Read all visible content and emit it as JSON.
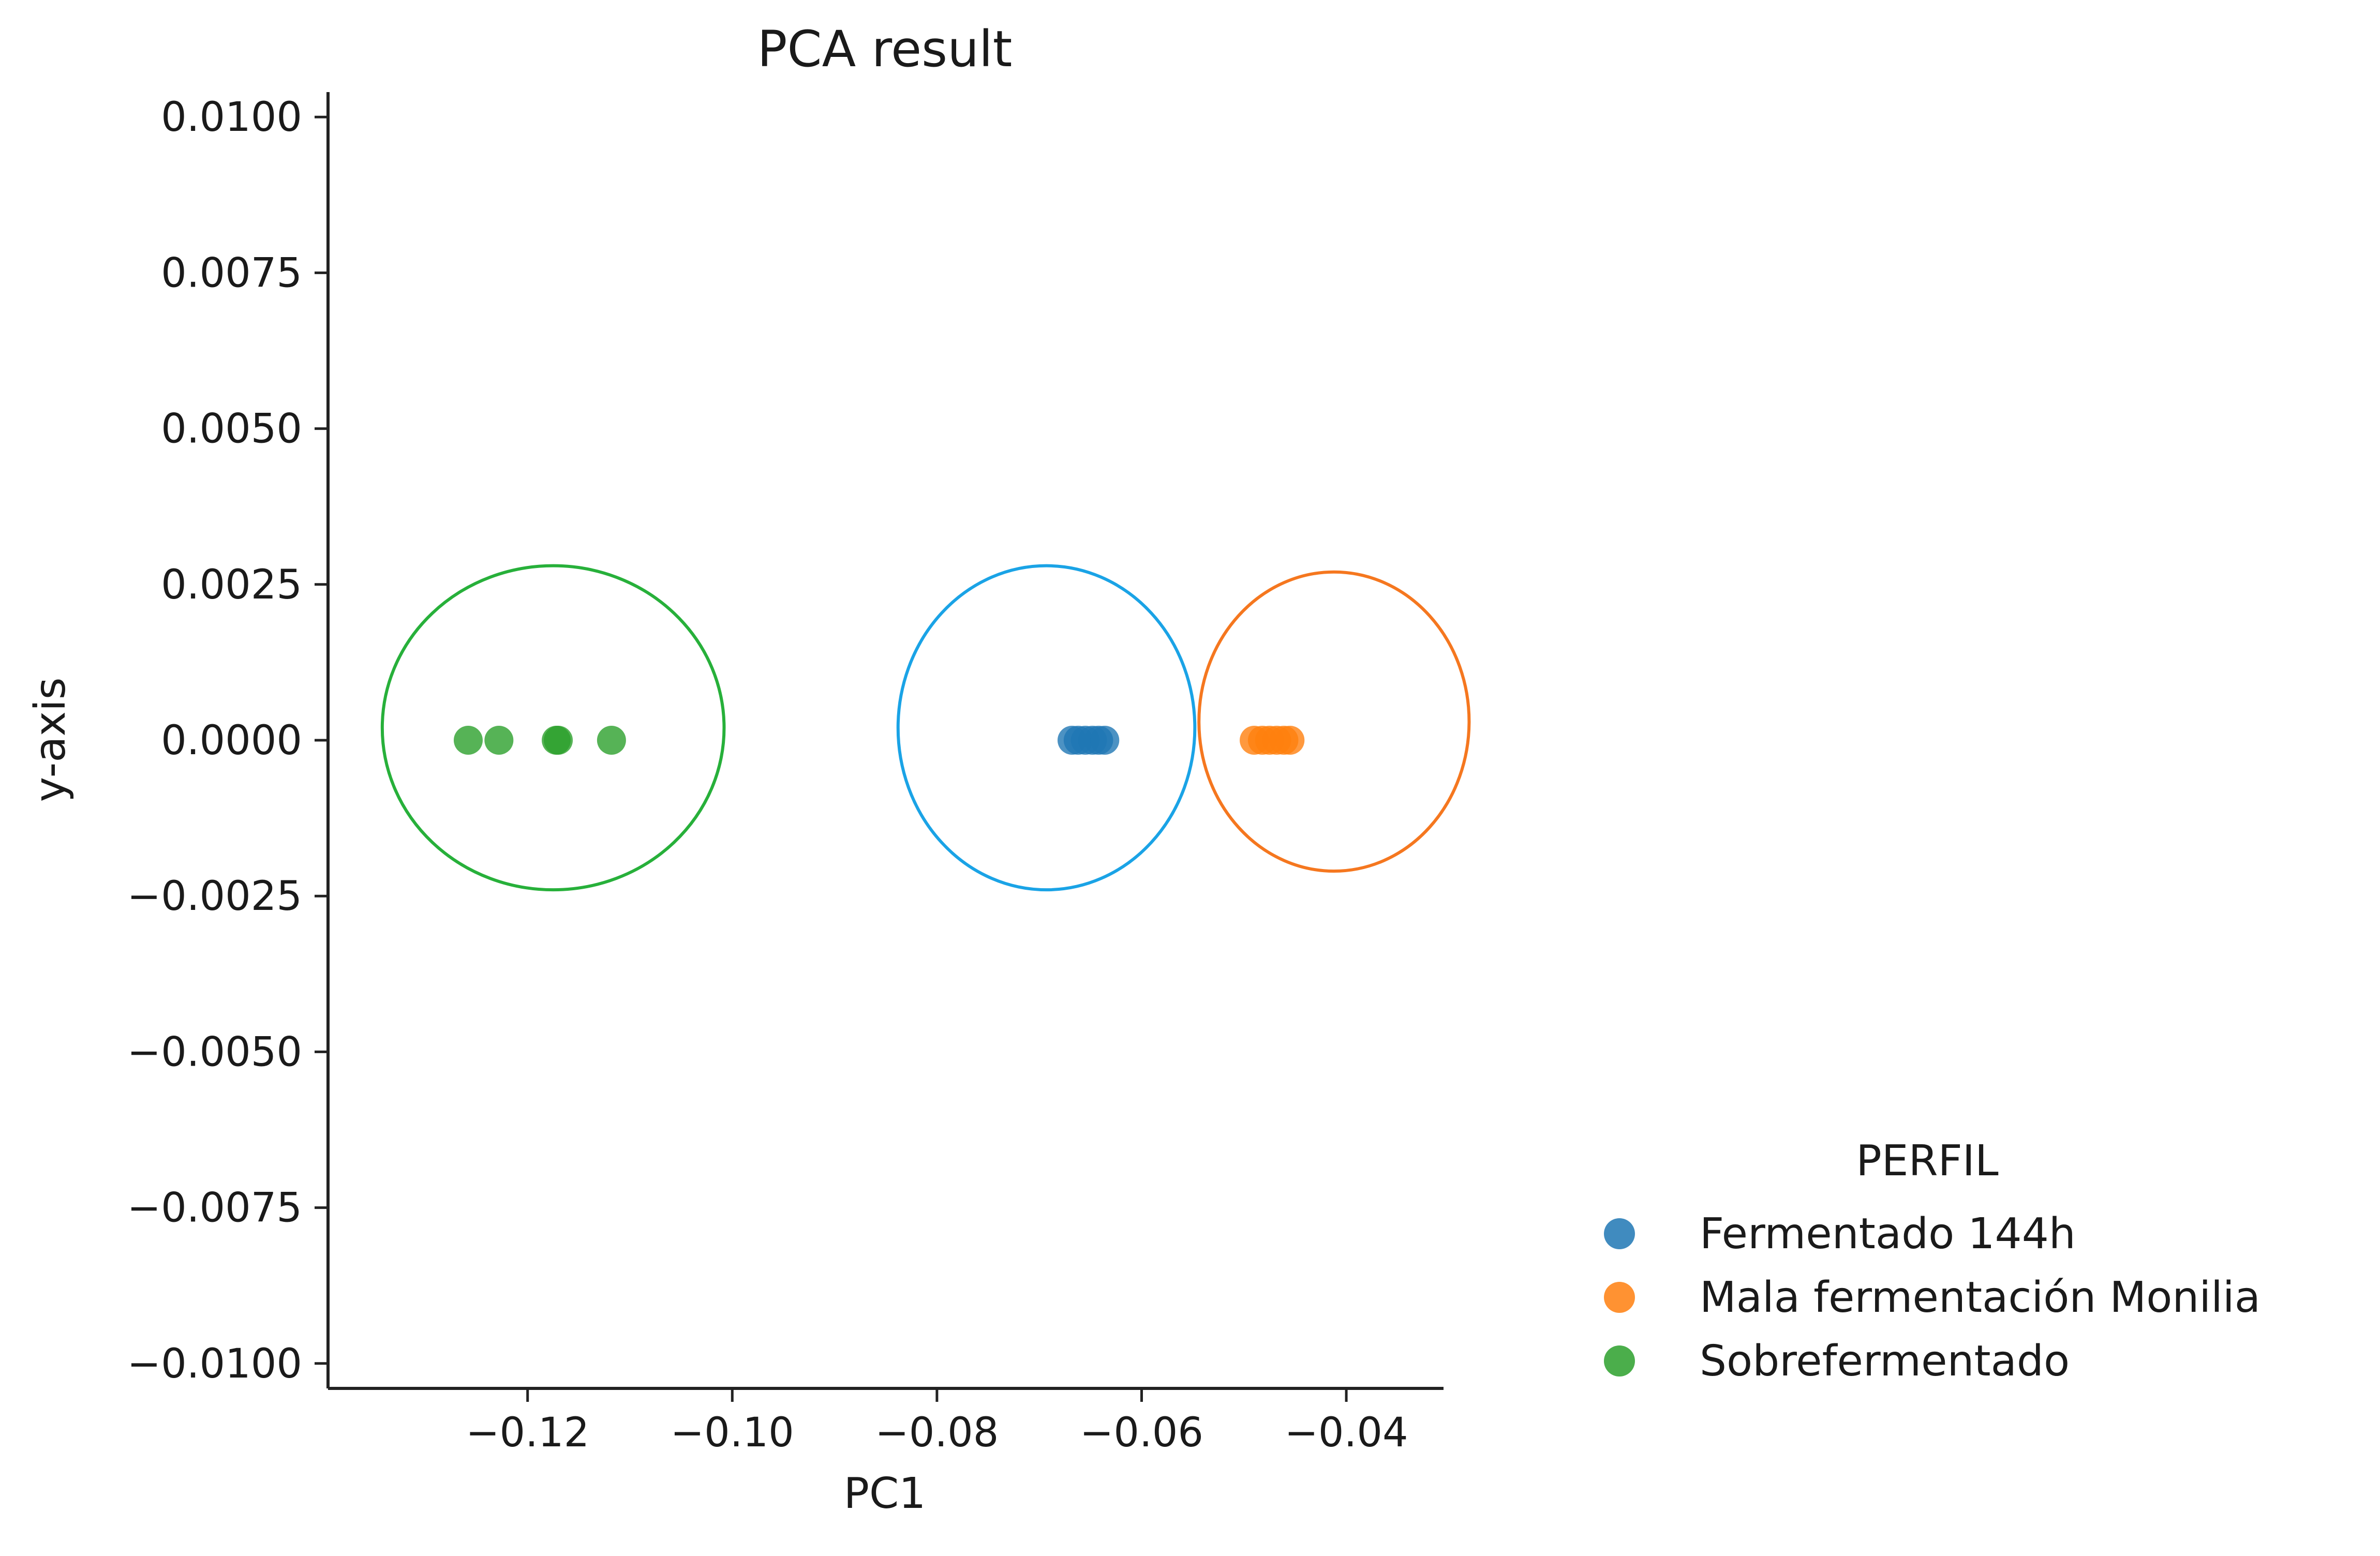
{
  "chart_data": {
    "type": "scatter",
    "title": "PCA result",
    "xlabel": "PC1",
    "ylabel": "y-axis",
    "xlim": [
      -0.1395,
      -0.0305
    ],
    "ylim": [
      -0.0104,
      0.0104
    ],
    "xticks": [
      -0.12,
      -0.1,
      -0.08,
      -0.06,
      -0.04
    ],
    "xtick_labels": [
      "−0.12",
      "−0.10",
      "−0.08",
      "−0.06",
      "−0.04"
    ],
    "yticks": [
      0.01,
      0.0075,
      0.005,
      0.0025,
      0.0,
      -0.0025,
      -0.005,
      -0.0075,
      -0.01
    ],
    "ytick_labels": [
      "0.0100",
      "0.0075",
      "0.0050",
      "0.0025",
      "0.0000",
      "−0.0025",
      "−0.0050",
      "−0.0075",
      "−0.0100"
    ],
    "grid": false,
    "legend": {
      "title": "PERFIL",
      "placement": "outside-bottom-right"
    },
    "series": [
      {
        "name": "Fermentado 144h",
        "color": "#1f77b4",
        "x": [
          -0.0668,
          -0.0662,
          -0.0655,
          -0.0648,
          -0.0642,
          -0.0636
        ],
        "y": [
          0.0,
          0.0,
          0.0,
          0.0,
          0.0,
          0.0
        ],
        "ellipse": {
          "cx": -0.0693,
          "cy": 0.0002,
          "rx": 0.0145,
          "ry": 0.0026,
          "color": "#1aa3e6"
        }
      },
      {
        "name": "Mala fermentación Monilia",
        "color": "#ff7f0e",
        "x": [
          -0.049,
          -0.0482,
          -0.0475,
          -0.0468,
          -0.0461,
          -0.0455
        ],
        "y": [
          0.0,
          0.0,
          0.0,
          0.0,
          0.0,
          0.0
        ],
        "ellipse": {
          "cx": -0.0412,
          "cy": 0.0003,
          "rx": 0.0132,
          "ry": 0.0024,
          "color": "#f5771f"
        }
      },
      {
        "name": "Sobrefermentado",
        "color": "#2ca02c",
        "x": [
          -0.1258,
          -0.1228,
          -0.1172,
          -0.117,
          -0.1118
        ],
        "y": [
          0.0,
          0.0,
          0.0,
          0.0,
          0.0
        ],
        "ellipse": {
          "cx": -0.1175,
          "cy": 0.0002,
          "rx": 0.0167,
          "ry": 0.0026,
          "color": "#27b03a"
        }
      }
    ]
  }
}
